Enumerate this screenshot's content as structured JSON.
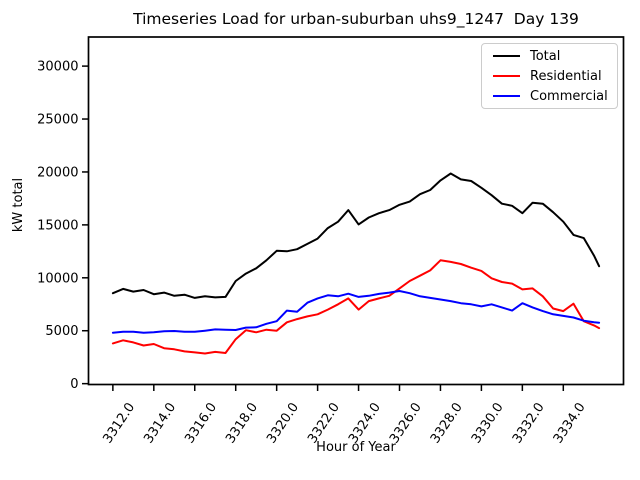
{
  "chart_data": {
    "type": "line",
    "title": "Timeseries Load for urban-suburban uhs9_1247  Day 139",
    "xlabel": "Hour of Year",
    "ylabel": "kW total",
    "grid": false,
    "legend_position": "upper right",
    "xlim": [
      3310.81,
      3336.94
    ],
    "ylim": [
      -80,
      32750
    ],
    "xticks": [
      3312,
      3314,
      3316,
      3318,
      3320,
      3322,
      3324,
      3326,
      3328,
      3330,
      3332,
      3334
    ],
    "xtick_labels": [
      "3312.0",
      "3314.0",
      "3316.0",
      "3318.0",
      "3320.0",
      "3322.0",
      "3324.0",
      "3326.0",
      "3328.0",
      "3330.0",
      "3332.0",
      "3334.0"
    ],
    "xtick_rotation_deg": -56,
    "yticks": [
      0,
      5000,
      10000,
      15000,
      20000,
      25000,
      30000
    ],
    "ytick_labels": [
      "0",
      "5000",
      "10000",
      "15000",
      "20000",
      "25000",
      "30000"
    ],
    "x": [
      3312,
      3312.5,
      3313,
      3313.5,
      3314,
      3314.5,
      3315,
      3315.5,
      3316,
      3316.5,
      3317,
      3317.5,
      3318,
      3318.5,
      3319,
      3319.5,
      3320,
      3320.5,
      3321,
      3321.5,
      3322,
      3322.5,
      3323,
      3323.5,
      3324,
      3324.5,
      3325,
      3325.5,
      3326,
      3326.5,
      3327,
      3327.5,
      3328,
      3328.5,
      3329,
      3329.5,
      3330,
      3330.5,
      3331,
      3331.5,
      3332,
      3332.5,
      3333,
      3333.5,
      3334,
      3334.5,
      3335,
      3335.5,
      3335.75
    ],
    "series": [
      {
        "name": "Total",
        "color": "#000000",
        "values": [
          8550,
          8950,
          8700,
          8850,
          8450,
          8600,
          8300,
          8400,
          8100,
          8250,
          8150,
          8200,
          9700,
          10400,
          10900,
          11650,
          12550,
          12500,
          12700,
          13200,
          13700,
          14700,
          15300,
          16400,
          15050,
          15700,
          16100,
          16400,
          16900,
          17200,
          17900,
          18300,
          19200,
          19850,
          19300,
          19150,
          18500,
          17800,
          17000,
          16800,
          16100,
          17100,
          17000,
          16200,
          15300,
          14050,
          13750,
          12100,
          11100
        ]
      },
      {
        "name": "Residential",
        "color": "#ff0000",
        "values": [
          3800,
          4100,
          3900,
          3600,
          3750,
          3350,
          3250,
          3050,
          2950,
          2850,
          3000,
          2900,
          4200,
          5050,
          4850,
          5100,
          5000,
          5800,
          6100,
          6350,
          6550,
          7000,
          7500,
          8050,
          7000,
          7800,
          8050,
          8300,
          9000,
          9700,
          10200,
          10700,
          11650,
          11500,
          11300,
          10950,
          10650,
          9950,
          9600,
          9450,
          8900,
          9000,
          8250,
          7100,
          6850,
          7550,
          5900,
          5500,
          5250
        ]
      },
      {
        "name": "Commercial",
        "color": "#0000ff",
        "values": [
          4800,
          4900,
          4900,
          4800,
          4850,
          4950,
          4970,
          4900,
          4900,
          5000,
          5130,
          5100,
          5070,
          5300,
          5320,
          5650,
          5900,
          6900,
          6800,
          7650,
          8050,
          8350,
          8250,
          8500,
          8200,
          8300,
          8480,
          8600,
          8750,
          8550,
          8250,
          8100,
          7950,
          7800,
          7600,
          7500,
          7300,
          7500,
          7200,
          6900,
          7600,
          7200,
          6850,
          6550,
          6400,
          6250,
          5950,
          5800,
          5750
        ]
      }
    ]
  }
}
